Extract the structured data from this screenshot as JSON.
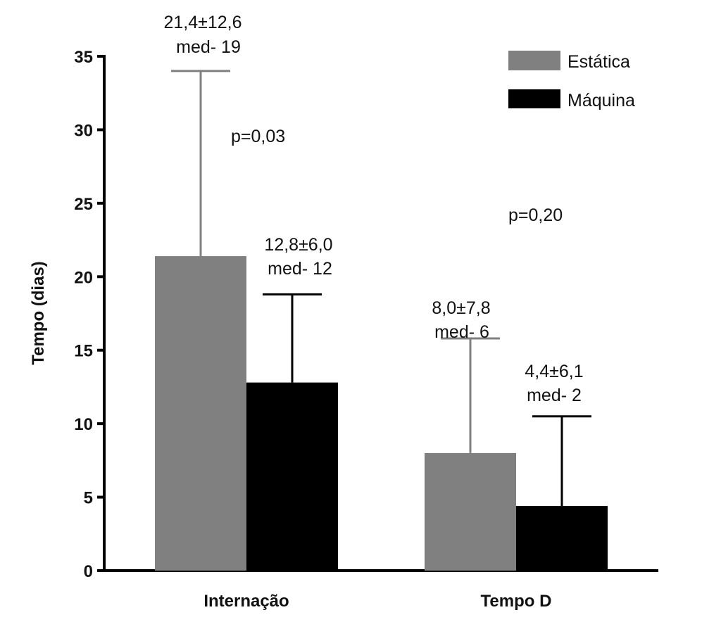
{
  "chart_data": {
    "type": "bar",
    "title": "",
    "xlabel": "",
    "ylabel": "Tempo (dias)",
    "ylim": [
      0,
      35
    ],
    "yticks": [
      "0",
      "5",
      "10",
      "15",
      "20",
      "25",
      "30",
      "35"
    ],
    "categories": [
      "Internação",
      "Tempo D"
    ],
    "series": [
      {
        "name": "Estática",
        "color": "#808080",
        "values": [
          21.4,
          8.0
        ],
        "sd": [
          12.6,
          7.8
        ],
        "labels": [
          "21,4±12,6",
          "8,0±7,8"
        ],
        "medians": [
          "med- 19",
          "med- 6"
        ]
      },
      {
        "name": "Máquina",
        "color": "#000000",
        "values": [
          12.8,
          4.4
        ],
        "sd": [
          6.0,
          6.1
        ],
        "labels": [
          "12,8±6,0",
          "4,4±6,1"
        ],
        "medians": [
          "med- 12",
          "med- 2"
        ]
      }
    ],
    "p_values": [
      "p=0,03",
      "p=0,20"
    ],
    "legend_position": "top-right",
    "grid": false
  }
}
